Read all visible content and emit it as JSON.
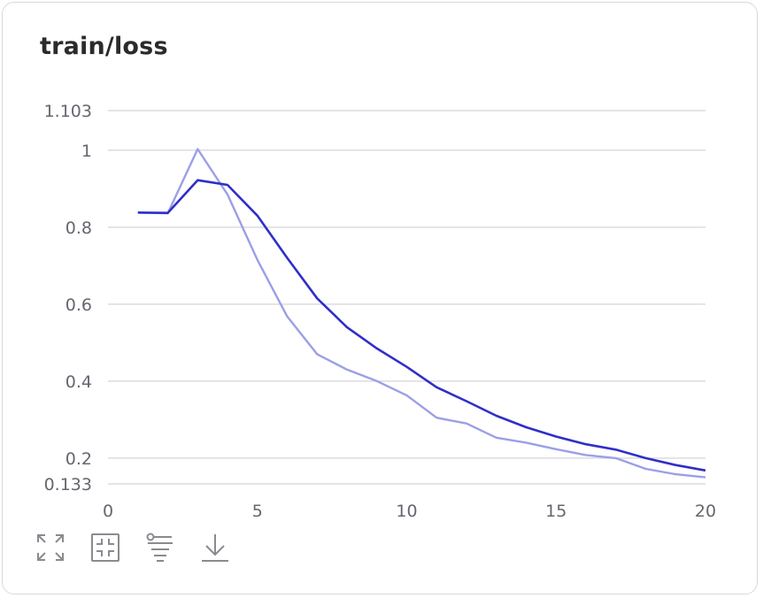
{
  "card": {
    "title": "train/loss"
  },
  "toolbar": {
    "icons": [
      "expand-icon",
      "fit-to-view-icon",
      "filter-icon",
      "download-icon"
    ]
  },
  "chart_data": {
    "type": "line",
    "title": "train/loss",
    "xlabel": "",
    "ylabel": "",
    "xlim": [
      0,
      20
    ],
    "ylim": [
      0.133,
      1.103
    ],
    "x_ticks": [
      0,
      5,
      10,
      15,
      20
    ],
    "y_ticks": [
      0.133,
      0.2,
      0.4,
      0.6,
      0.8,
      1,
      1.103
    ],
    "y_tick_labels": [
      "0.133",
      "0.2",
      "0.4",
      "0.6",
      "0.8",
      "1",
      "1.103"
    ],
    "x_tick_labels": [
      "0",
      "5",
      "10",
      "15",
      "20"
    ],
    "grid": true,
    "series": [
      {
        "role": "raw",
        "color": "#9b9fe6",
        "x": [
          1,
          2,
          3,
          4,
          5,
          6,
          7,
          8,
          9,
          10,
          11,
          12,
          13,
          14,
          15,
          16,
          17,
          18,
          19,
          20
        ],
        "values": [
          0.838,
          0.836,
          1.003,
          0.885,
          0.715,
          0.568,
          0.47,
          0.43,
          0.4,
          0.363,
          0.305,
          0.29,
          0.253,
          0.24,
          0.223,
          0.208,
          0.2,
          0.172,
          0.158,
          0.15
        ]
      },
      {
        "role": "smoothed",
        "color": "#2f2fc8",
        "x": [
          1,
          2,
          3,
          4,
          5,
          6,
          7,
          8,
          9,
          10,
          11,
          12,
          13,
          14,
          15,
          16,
          17,
          18,
          19,
          20
        ],
        "values": [
          0.838,
          0.837,
          0.922,
          0.91,
          0.83,
          0.72,
          0.615,
          0.54,
          0.485,
          0.437,
          0.384,
          0.348,
          0.31,
          0.28,
          0.256,
          0.236,
          0.222,
          0.2,
          0.182,
          0.168
        ]
      }
    ]
  }
}
